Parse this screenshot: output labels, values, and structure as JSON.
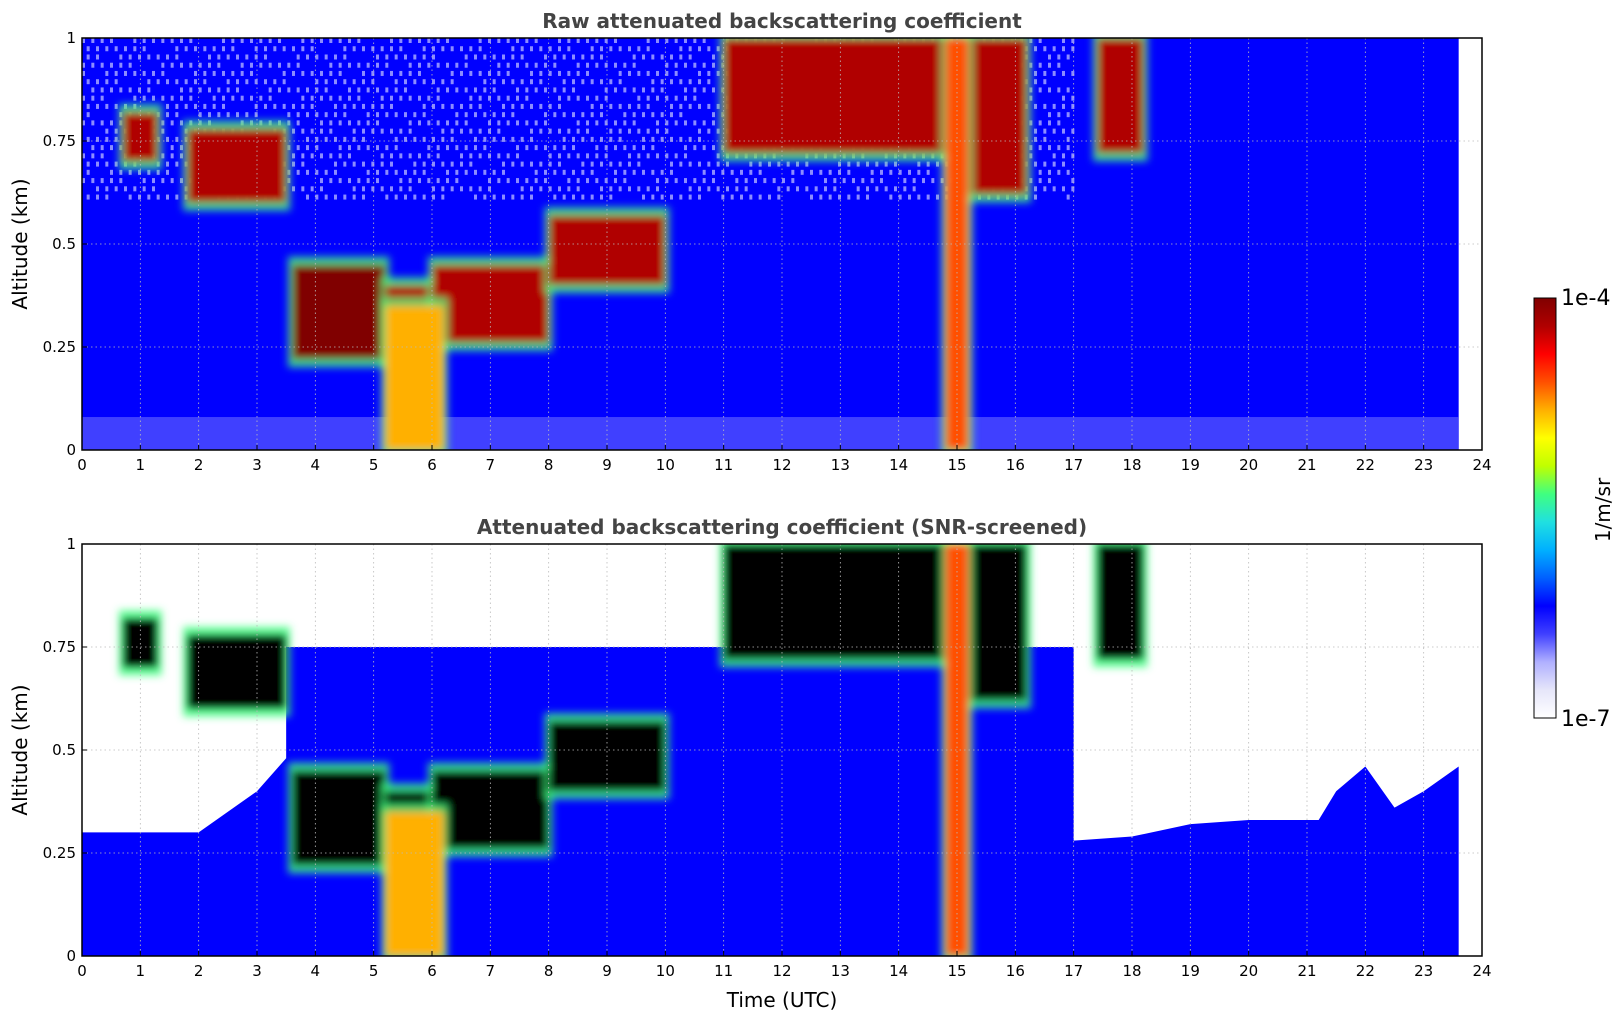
{
  "chart_data": [
    {
      "type": "heatmap",
      "title": "Raw attenuated backscattering coefficient",
      "xlabel": "",
      "ylabel": "Altitude (km)",
      "xlim": [
        0,
        24
      ],
      "ylim": [
        0,
        1
      ],
      "x_ticks": [
        "0",
        "1",
        "2",
        "3",
        "4",
        "5",
        "6",
        "7",
        "8",
        "9",
        "10",
        "11",
        "12",
        "13",
        "14",
        "15",
        "16",
        "17",
        "18",
        "19",
        "20",
        "21",
        "22",
        "23",
        "24"
      ],
      "y_ticks": [
        "0",
        "0.25",
        "0.5",
        "0.75",
        "1"
      ],
      "grid": true,
      "data_extent_hours": [
        0,
        23.6
      ],
      "colorscale": "jet (log)",
      "layers": [
        {
          "feature": "background",
          "level": 0.18
        },
        {
          "feature": "cloud layer",
          "time": [
            0.7,
            1.3
          ],
          "base_km": 0.7,
          "top_km": 0.82,
          "level": 0.9
        },
        {
          "feature": "cloud layer",
          "time": [
            1.8,
            3.5
          ],
          "base_km": 0.6,
          "top_km": 0.78,
          "level": 0.95
        },
        {
          "feature": "cloud layer",
          "time": [
            3.6,
            5.2
          ],
          "base_km": 0.22,
          "top_km": 0.45,
          "level": 0.97
        },
        {
          "feature": "cloud layer",
          "time": [
            5.2,
            6.0
          ],
          "base_km": 0.22,
          "top_km": 0.4,
          "level": 0.9
        },
        {
          "feature": "cloud layer",
          "time": [
            6.0,
            8.0
          ],
          "base_km": 0.26,
          "top_km": 0.45,
          "level": 0.95
        },
        {
          "feature": "cloud layer",
          "time": [
            8.0,
            10.0
          ],
          "base_km": 0.4,
          "top_km": 0.57,
          "level": 0.95
        },
        {
          "feature": "cloud layer",
          "time": [
            11.0,
            14.8
          ],
          "base_km": 0.72,
          "top_km": 1.0,
          "level": 0.95
        },
        {
          "feature": "cloud layer",
          "time": [
            15.2,
            16.2
          ],
          "base_km": 0.62,
          "top_km": 1.0,
          "level": 0.92
        },
        {
          "feature": "cloud layer",
          "time": [
            17.4,
            18.2
          ],
          "base_km": 0.72,
          "top_km": 1.0,
          "level": 0.95
        },
        {
          "feature": "precipitation column",
          "time": [
            14.8,
            15.2
          ],
          "base_km": 0.0,
          "top_km": 1.0,
          "level": 0.8
        },
        {
          "feature": "precipitation column",
          "time": [
            5.2,
            6.2
          ],
          "base_km": 0.0,
          "top_km": 0.35,
          "level": 0.75
        }
      ]
    },
    {
      "type": "heatmap",
      "title": "Attenuated backscattering coefficient (SNR-screened)",
      "xlabel": "Time (UTC)",
      "ylabel": "Altitude (km)",
      "xlim": [
        0,
        24
      ],
      "ylim": [
        0,
        1
      ],
      "x_ticks": [
        "0",
        "1",
        "2",
        "3",
        "4",
        "5",
        "6",
        "7",
        "8",
        "9",
        "10",
        "11",
        "12",
        "13",
        "14",
        "15",
        "16",
        "17",
        "18",
        "19",
        "20",
        "21",
        "22",
        "23",
        "24"
      ],
      "y_ticks": [
        "0",
        "0.25",
        "0.5",
        "0.75",
        "1"
      ],
      "grid": true,
      "data_extent_hours": [
        0,
        23.6
      ],
      "colorscale": "jet (log)",
      "screened_top_km": [
        {
          "t": 0.0,
          "km": 0.3
        },
        {
          "t": 2.0,
          "km": 0.3
        },
        {
          "t": 3.0,
          "km": 0.4
        },
        {
          "t": 3.5,
          "km": 0.48
        },
        {
          "t": 17.0,
          "km": 0.28
        },
        {
          "t": 18.0,
          "km": 0.29
        },
        {
          "t": 19.0,
          "km": 0.32
        },
        {
          "t": 20.0,
          "km": 0.33
        },
        {
          "t": 21.2,
          "km": 0.33
        },
        {
          "t": 21.5,
          "km": 0.4
        },
        {
          "t": 22.0,
          "km": 0.46
        },
        {
          "t": 22.5,
          "km": 0.36
        },
        {
          "t": 23.0,
          "km": 0.4
        },
        {
          "t": 23.6,
          "km": 0.46
        }
      ]
    }
  ],
  "colorbar": {
    "label": "1/m/sr",
    "max_label": "1e-4",
    "min_label": "1e-7",
    "colors": [
      "#ffffff",
      "#e6e6fa",
      "#b0b0ff",
      "#4040ff",
      "#0000ff",
      "#0060ff",
      "#00b0ff",
      "#20e0e0",
      "#40ff80",
      "#c0ff00",
      "#ffff00",
      "#ffb000",
      "#ff5000",
      "#ff0000",
      "#b00000",
      "#800000"
    ]
  }
}
